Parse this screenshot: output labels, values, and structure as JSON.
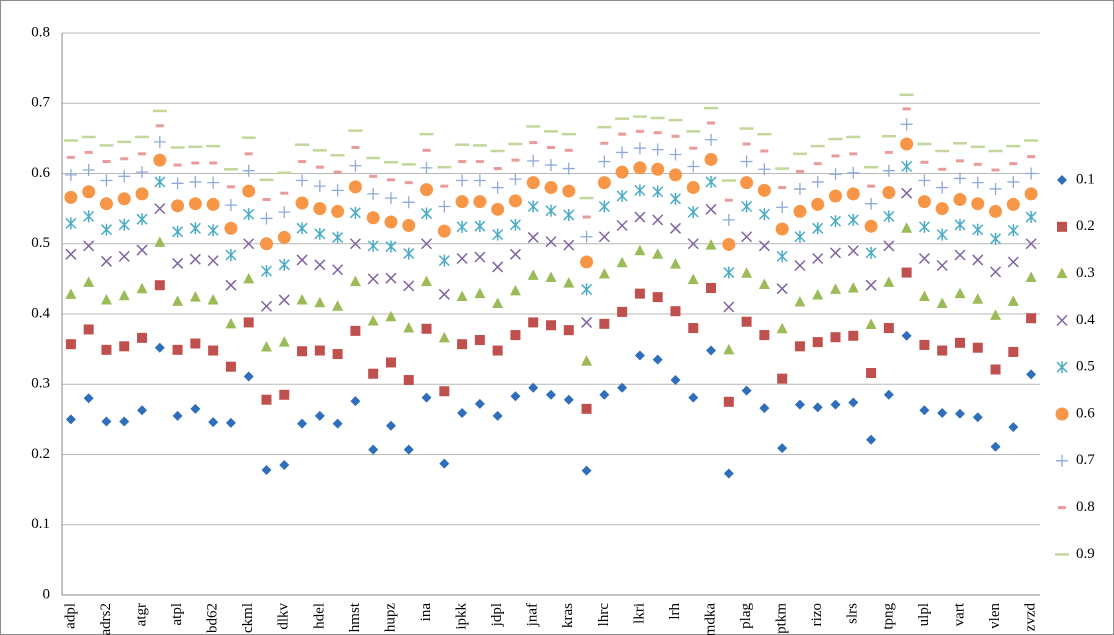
{
  "chart_data": {
    "type": "scatter",
    "categories": [
      "adpl",
      null,
      "adrs2",
      null,
      "atgr",
      null,
      "atpl",
      null,
      "bd62",
      null,
      "ckml",
      null,
      "dlkv",
      null,
      "hdel",
      null,
      "hmst",
      null,
      "hupz",
      null,
      "ina",
      null,
      "ipkk",
      null,
      "jdpl",
      null,
      "jnaf",
      null,
      "kras",
      null,
      "lhrc",
      null,
      "lkri",
      null,
      "lrh",
      null,
      "mdka",
      null,
      "plag",
      null,
      "ptkm",
      null,
      "rizo",
      null,
      "slrs",
      null,
      "tpng",
      null,
      "ulpl",
      null,
      "vart",
      null,
      "vlen",
      null,
      "zvzd"
    ],
    "ylim": [
      0,
      0.8
    ],
    "yticks": [
      0,
      0.1,
      0.2,
      0.3,
      0.4,
      0.5,
      0.6,
      0.7,
      0.8
    ],
    "grid": true,
    "legend": "right",
    "series": [
      {
        "name": "0.1",
        "color": "#2f6eba",
        "values": [
          0.25,
          0.28,
          0.247,
          0.247,
          0.263,
          0.352,
          0.255,
          0.265,
          0.246,
          0.245,
          0.311,
          0.178,
          0.185,
          0.244,
          0.255,
          0.244,
          0.276,
          0.207,
          0.241,
          0.207,
          0.281,
          0.187,
          0.259,
          0.272,
          0.255,
          0.283,
          0.295,
          0.285,
          0.278,
          0.177,
          0.285,
          0.295,
          0.341,
          0.335,
          0.306,
          0.281,
          0.348,
          0.173,
          0.291,
          0.266,
          0.209,
          0.271,
          0.267,
          0.271,
          0.274,
          0.221,
          0.285,
          0.369,
          0.263,
          0.259,
          0.258,
          0.253,
          0.211,
          0.239,
          0.314
        ]
      },
      {
        "name": "0.2",
        "color": "#c0504d",
        "values": [
          0.357,
          0.378,
          0.349,
          0.354,
          0.366,
          0.441,
          0.349,
          0.358,
          0.348,
          0.325,
          0.388,
          0.278,
          0.285,
          0.347,
          0.348,
          0.343,
          0.376,
          0.315,
          0.331,
          0.306,
          0.379,
          0.29,
          0.357,
          0.363,
          0.348,
          0.37,
          0.388,
          0.384,
          0.377,
          0.265,
          0.386,
          0.403,
          0.429,
          0.424,
          0.404,
          0.38,
          0.437,
          0.275,
          0.389,
          0.37,
          0.308,
          0.354,
          0.36,
          0.367,
          0.369,
          0.316,
          0.38,
          0.459,
          0.356,
          0.348,
          0.359,
          0.352,
          0.321,
          0.346,
          0.394
        ]
      },
      {
        "name": "0.3",
        "color": "#9bbb59",
        "values": [
          0.428,
          0.445,
          0.42,
          0.426,
          0.436,
          0.502,
          0.418,
          0.424,
          0.42,
          0.386,
          0.45,
          0.353,
          0.36,
          0.42,
          0.416,
          0.411,
          0.446,
          0.39,
          0.396,
          0.38,
          0.446,
          0.366,
          0.425,
          0.429,
          0.415,
          0.433,
          0.455,
          0.452,
          0.444,
          0.333,
          0.457,
          0.473,
          0.49,
          0.485,
          0.471,
          0.449,
          0.498,
          0.349,
          0.458,
          0.442,
          0.379,
          0.417,
          0.427,
          0.435,
          0.437,
          0.385,
          0.445,
          0.522,
          0.425,
          0.415,
          0.429,
          0.421,
          0.398,
          0.418,
          0.452
        ]
      },
      {
        "name": "0.4",
        "color": "#8064a2",
        "values": [
          0.485,
          0.497,
          0.475,
          0.482,
          0.491,
          0.55,
          0.472,
          0.478,
          0.476,
          0.441,
          0.5,
          0.411,
          0.42,
          0.477,
          0.47,
          0.463,
          0.5,
          0.45,
          0.451,
          0.44,
          0.5,
          0.428,
          0.479,
          0.481,
          0.467,
          0.485,
          0.509,
          0.503,
          0.498,
          0.388,
          0.51,
          0.526,
          0.538,
          0.534,
          0.522,
          0.5,
          0.549,
          0.41,
          0.51,
          0.497,
          0.436,
          0.469,
          0.479,
          0.487,
          0.49,
          0.441,
          0.497,
          0.572,
          0.479,
          0.469,
          0.484,
          0.477,
          0.46,
          0.474,
          0.5
        ]
      },
      {
        "name": "0.5",
        "color": "#4bacc6",
        "values": [
          0.529,
          0.539,
          0.52,
          0.527,
          0.535,
          0.588,
          0.517,
          0.522,
          0.519,
          0.484,
          0.542,
          0.461,
          0.47,
          0.522,
          0.514,
          0.509,
          0.544,
          0.497,
          0.496,
          0.486,
          0.543,
          0.476,
          0.524,
          0.525,
          0.513,
          0.527,
          0.553,
          0.547,
          0.541,
          0.435,
          0.553,
          0.568,
          0.576,
          0.574,
          0.564,
          0.545,
          0.588,
          0.459,
          0.553,
          0.542,
          0.482,
          0.51,
          0.522,
          0.532,
          0.534,
          0.487,
          0.539,
          0.61,
          0.524,
          0.513,
          0.527,
          0.52,
          0.507,
          0.519,
          0.538
        ]
      },
      {
        "name": "0.6",
        "color": "#f79646",
        "values": [
          0.566,
          0.574,
          0.557,
          0.564,
          0.571,
          0.619,
          0.554,
          0.557,
          0.556,
          0.522,
          0.575,
          0.5,
          0.509,
          0.558,
          0.55,
          0.546,
          0.581,
          0.537,
          0.531,
          0.526,
          0.577,
          0.518,
          0.56,
          0.56,
          0.549,
          0.561,
          0.587,
          0.58,
          0.575,
          0.474,
          0.587,
          0.602,
          0.608,
          0.606,
          0.598,
          0.58,
          0.62,
          0.499,
          0.587,
          0.576,
          0.521,
          0.546,
          0.556,
          0.568,
          0.571,
          0.525,
          0.573,
          0.642,
          0.56,
          0.55,
          0.563,
          0.557,
          0.546,
          0.556,
          0.571
        ]
      },
      {
        "name": "0.7",
        "color": "#8eaad8",
        "values": [
          0.598,
          0.605,
          0.59,
          0.596,
          0.602,
          0.645,
          0.586,
          0.588,
          0.587,
          0.555,
          0.604,
          0.536,
          0.545,
          0.59,
          0.582,
          0.576,
          0.611,
          0.571,
          0.565,
          0.559,
          0.608,
          0.553,
          0.59,
          0.59,
          0.58,
          0.592,
          0.618,
          0.612,
          0.607,
          0.51,
          0.617,
          0.63,
          0.636,
          0.634,
          0.627,
          0.61,
          0.648,
          0.534,
          0.617,
          0.606,
          0.552,
          0.578,
          0.588,
          0.599,
          0.601,
          0.557,
          0.604,
          0.67,
          0.59,
          0.58,
          0.593,
          0.587,
          0.578,
          0.588,
          0.6
        ]
      },
      {
        "name": "0.8",
        "color": "#e89b9a",
        "values": [
          0.623,
          0.63,
          0.617,
          0.621,
          0.628,
          0.668,
          0.612,
          0.615,
          0.615,
          0.581,
          0.628,
          0.563,
          0.572,
          0.617,
          0.609,
          0.602,
          0.637,
          0.596,
          0.591,
          0.587,
          0.633,
          0.582,
          0.617,
          0.617,
          0.607,
          0.619,
          0.644,
          0.637,
          0.633,
          0.538,
          0.643,
          0.656,
          0.66,
          0.658,
          0.653,
          0.636,
          0.672,
          0.562,
          0.642,
          0.632,
          0.58,
          0.603,
          0.614,
          0.625,
          0.628,
          0.582,
          0.63,
          0.692,
          0.616,
          0.606,
          0.618,
          0.613,
          0.605,
          0.614,
          0.624
        ]
      },
      {
        "name": "0.9",
        "color": "#c3d69b",
        "values": [
          0.647,
          0.652,
          0.64,
          0.645,
          0.652,
          0.689,
          0.637,
          0.638,
          0.639,
          0.606,
          0.651,
          0.591,
          0.601,
          0.641,
          0.633,
          0.626,
          0.661,
          0.622,
          0.616,
          0.613,
          0.656,
          0.609,
          0.641,
          0.64,
          0.632,
          0.642,
          0.667,
          0.66,
          0.656,
          0.565,
          0.666,
          0.678,
          0.681,
          0.679,
          0.676,
          0.66,
          0.693,
          0.59,
          0.664,
          0.656,
          0.607,
          0.628,
          0.639,
          0.649,
          0.652,
          0.609,
          0.653,
          0.712,
          0.642,
          0.632,
          0.643,
          0.638,
          0.632,
          0.639,
          0.647
        ]
      }
    ]
  }
}
